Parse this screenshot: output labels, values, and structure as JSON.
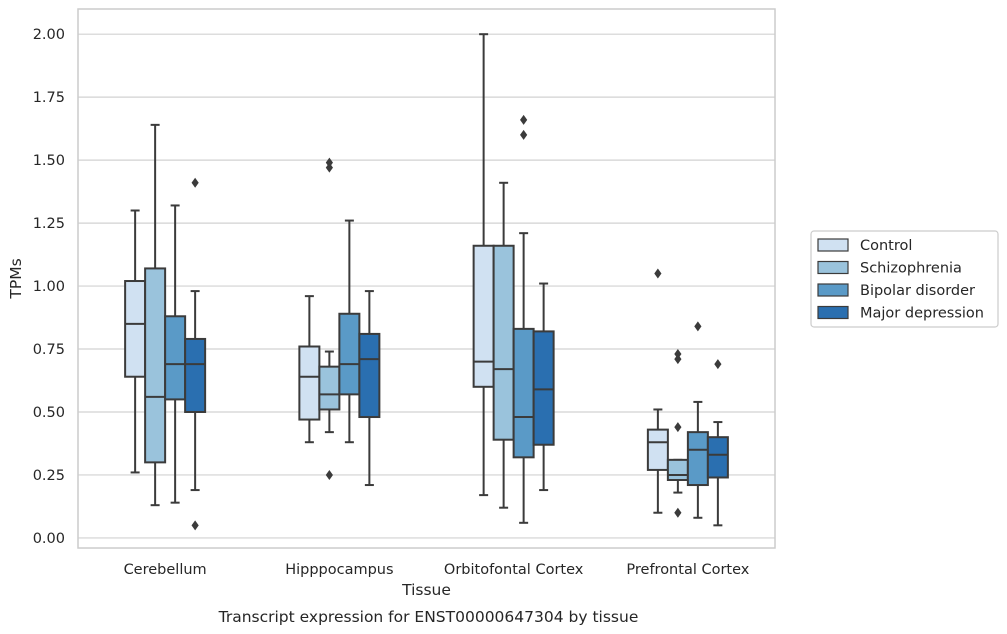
{
  "chart_data": {
    "type": "boxplot",
    "caption": "Transcript expression for ENST00000647304 by tissue",
    "xlabel": "Tissue",
    "ylabel": "TPMs",
    "ylim": [
      -0.04,
      2.1
    ],
    "yticks": [
      "0.00",
      "0.25",
      "0.50",
      "0.75",
      "1.00",
      "1.25",
      "1.50",
      "1.75",
      "2.00"
    ],
    "grid": "horizontal",
    "legend_position": "right",
    "categories": [
      "Cerebellum",
      "Hipppocampus",
      "Orbitofontal Cortex",
      "Prefrontal Cortex"
    ],
    "series": [
      {
        "name": "Control",
        "color": "#d0e1f2",
        "boxes": [
          {
            "whisker_low": 0.26,
            "q1": 0.64,
            "median": 0.85,
            "q3": 1.02,
            "whisker_high": 1.3,
            "outliers": []
          },
          {
            "whisker_low": 0.38,
            "q1": 0.47,
            "median": 0.64,
            "q3": 0.76,
            "whisker_high": 0.96,
            "outliers": []
          },
          {
            "whisker_low": 0.17,
            "q1": 0.6,
            "median": 0.7,
            "q3": 1.16,
            "whisker_high": 2.0,
            "outliers": []
          },
          {
            "whisker_low": 0.1,
            "q1": 0.27,
            "median": 0.38,
            "q3": 0.43,
            "whisker_high": 0.51,
            "outliers": [
              1.05
            ]
          }
        ]
      },
      {
        "name": "Schizophrenia",
        "color": "#9ac3dc",
        "boxes": [
          {
            "whisker_low": 0.13,
            "q1": 0.3,
            "median": 0.56,
            "q3": 1.07,
            "whisker_high": 1.64,
            "outliers": []
          },
          {
            "whisker_low": 0.42,
            "q1": 0.51,
            "median": 0.57,
            "q3": 0.68,
            "whisker_high": 0.74,
            "outliers": [
              1.47,
              1.49,
              0.25
            ]
          },
          {
            "whisker_low": 0.12,
            "q1": 0.39,
            "median": 0.67,
            "q3": 1.16,
            "whisker_high": 1.41,
            "outliers": []
          },
          {
            "whisker_low": 0.18,
            "q1": 0.23,
            "median": 0.25,
            "q3": 0.31,
            "whisker_high": 0.31,
            "outliers": [
              0.71,
              0.73,
              0.44,
              0.1
            ]
          }
        ]
      },
      {
        "name": "Bipolar disorder",
        "color": "#5a9ac7",
        "boxes": [
          {
            "whisker_low": 0.14,
            "q1": 0.55,
            "median": 0.69,
            "q3": 0.88,
            "whisker_high": 1.32,
            "outliers": []
          },
          {
            "whisker_low": 0.38,
            "q1": 0.57,
            "median": 0.69,
            "q3": 0.89,
            "whisker_high": 1.26,
            "outliers": []
          },
          {
            "whisker_low": 0.06,
            "q1": 0.32,
            "median": 0.48,
            "q3": 0.83,
            "whisker_high": 1.21,
            "outliers": [
              1.6,
              1.66
            ]
          },
          {
            "whisker_low": 0.08,
            "q1": 0.21,
            "median": 0.35,
            "q3": 0.42,
            "whisker_high": 0.54,
            "outliers": [
              0.84
            ]
          }
        ]
      },
      {
        "name": "Major depression",
        "color": "#2a6fb0",
        "boxes": [
          {
            "whisker_low": 0.19,
            "q1": 0.5,
            "median": 0.69,
            "q3": 0.79,
            "whisker_high": 0.98,
            "outliers": [
              1.41,
              0.05
            ]
          },
          {
            "whisker_low": 0.21,
            "q1": 0.48,
            "median": 0.71,
            "q3": 0.81,
            "whisker_high": 0.98,
            "outliers": []
          },
          {
            "whisker_low": 0.19,
            "q1": 0.37,
            "median": 0.59,
            "q3": 0.82,
            "whisker_high": 1.01,
            "outliers": []
          },
          {
            "whisker_low": 0.05,
            "q1": 0.24,
            "median": 0.33,
            "q3": 0.4,
            "whisker_high": 0.46,
            "outliers": [
              0.69
            ]
          }
        ]
      }
    ]
  }
}
